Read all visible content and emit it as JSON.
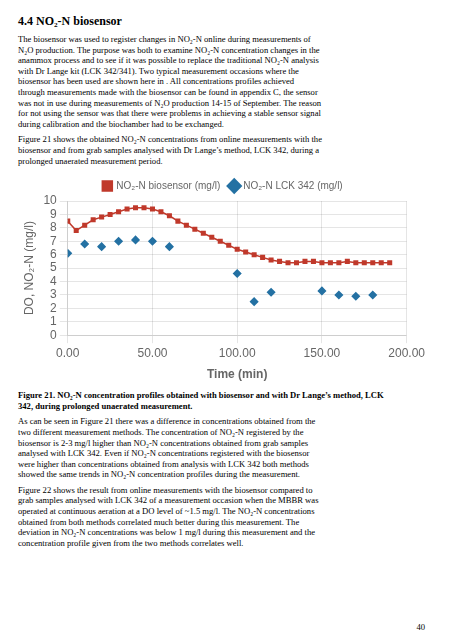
{
  "chart_data": {
    "type": "line",
    "title": "4.4 NO₂-N biosensor",
    "annotations": [
      "The biosensor was used to register changes in NO₂-N online during measurements of\nN₂O production. The purpose was both to examine NO₂-N concentration changes in the\nanammox process and to see if it was possible to replace the traditional NO₂-N analysis\nwith Dr Lange kit (LCK 342/341). Two typical measurement occasions where the\nbiosensor has been used are shown here in . All concentrations profiles achieved\nthrough measurements made with the biosensor can be found in appendix C, the sensor\nwas not in use during measurements of N₂O production 14-15 of September. The reason\nfor not using the sensor was that there were problems in achieving a stable sensor signal\nduring calibration and the biochamber had to be exchanged.",
      "Figure 21 shows the obtained NO₂-N concentrations from online measurements with the\nbiosensor and from grab samples analysed with Dr Lange’s method, LCK 342, during a\nprolonged unaerated measurement period.",
      "Figure 21. NO₂-N concentration profiles obtained with biosensor and with Dr Lange’s method, LCK\n342, during prolonged unaerated measurement.",
      "As can be seen in Figure 21 there was a difference in concentrations obtained from the\ntwo different measurement methods. The concentration of NO₂-N registered by the\nbiosensor is 2-3 mg/l higher than NO₂-N concentrations obtained from grab samples\nanalysed with LCK 342. Even if NO₂-N concentrations registered with the biosensor\nwere higher than concentrations obtained from analysis with LCK 342 both methods\nshowed the same trends in NO₂-N concentration profiles during the measurement.",
      "Figure 22 shows the result from online measurements with the biosensor compared to\ngrab samples analysed with LCK 342 of a measurement occasion when the MBBR was\noperated at continuous aeration at a DO level of ~1.5 mg/l. The NO₂-N concentrations\nobtained from both methods correlated much better during this measurement. The\ndeviation in NO₂-N concentrations was below 1 mg/l during this measurement and the\nconcentration profile given from the two methods correlates well.",
      "40"
    ],
    "xlabel": "Time (min)",
    "ylabel": "DO, NO₂-N (mg/l)",
    "xlim": [
      0,
      200
    ],
    "xticks": [
      {
        "value": 0,
        "label": "0.00"
      },
      {
        "value": 50,
        "label": "50.00"
      },
      {
        "value": 100,
        "label": "100.00"
      },
      {
        "value": 150,
        "label": "150.00"
      },
      {
        "value": 200,
        "label": "200.00"
      }
    ],
    "ylim": [
      0,
      10
    ],
    "yticks": [
      0,
      1,
      2,
      3,
      4,
      5,
      6,
      7,
      8,
      9,
      10
    ],
    "grid": true,
    "legend": "top",
    "series": [
      {
        "name": "NO₂-N biosensor (mg/l)",
        "type": "line",
        "marker": "square",
        "line_style": "solid",
        "color": "#c0392b",
        "x": [
          0,
          5,
          10,
          15,
          20,
          25,
          30,
          35,
          40,
          45,
          50,
          55,
          60,
          65,
          70,
          75,
          80,
          85,
          90,
          95,
          100,
          105,
          110,
          115,
          120,
          125,
          130,
          135,
          140,
          145,
          150,
          155,
          160,
          165,
          170,
          175,
          180,
          185,
          190
        ],
        "values": [
          8.5,
          7.8,
          8.2,
          8.6,
          8.8,
          9.0,
          9.2,
          9.4,
          9.5,
          9.5,
          9.4,
          9.2,
          8.9,
          8.5,
          8.2,
          7.9,
          7.6,
          7.3,
          7.0,
          6.7,
          6.4,
          6.2,
          6.0,
          5.8,
          5.6,
          5.5,
          5.4,
          5.4,
          5.5,
          5.5,
          5.4,
          5.4,
          5.4,
          5.5,
          5.4,
          5.4,
          5.4,
          5.4,
          5.4
        ]
      },
      {
        "name": "NO₂-N LCK 342 (mg/l)",
        "type": "scatter",
        "marker": "diamond",
        "line_style": "none",
        "color": "#2471a3",
        "x": [
          0,
          10,
          20,
          30,
          40,
          50,
          60,
          100,
          110,
          120,
          150,
          160,
          170,
          180
        ],
        "values": [
          6.1,
          6.8,
          6.6,
          7.0,
          7.1,
          7.0,
          6.6,
          4.6,
          2.5,
          3.2,
          3.3,
          3.0,
          2.9,
          3.0
        ]
      }
    ]
  }
}
